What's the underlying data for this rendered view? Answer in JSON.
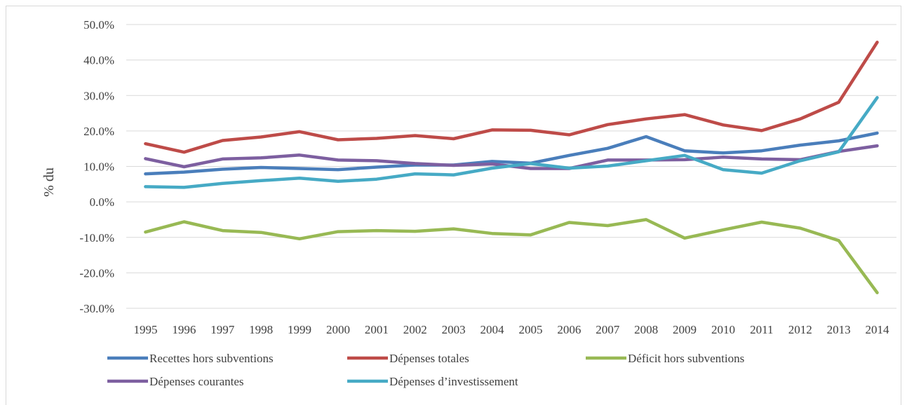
{
  "chart_data": {
    "type": "line",
    "title": "",
    "xlabel": "",
    "ylabel": "% du",
    "ylim": [
      -30,
      50
    ],
    "yticks": [
      50,
      40,
      30,
      20,
      10,
      0,
      -10,
      -20,
      -30
    ],
    "ytick_labels": [
      "50.0%",
      "40.0%",
      "30.0%",
      "20.0%",
      "10.0%",
      "0.0%",
      "-10.0%",
      "-20.0%",
      "-30.0%"
    ],
    "categories": [
      "1995",
      "1996",
      "1997",
      "1998",
      "1999",
      "2000",
      "2001",
      "2002",
      "2003",
      "2004",
      "2005",
      "2006",
      "2007",
      "2008",
      "2009",
      "2010",
      "2011",
      "2012",
      "2013",
      "2014"
    ],
    "grid": true,
    "legend_position": "bottom",
    "series": [
      {
        "name": "Recettes hors subventions",
        "color": "#4a7ebb",
        "values": [
          7.9,
          8.4,
          9.2,
          9.7,
          9.4,
          9.1,
          9.8,
          10.4,
          10.4,
          11.4,
          10.9,
          13.1,
          15.1,
          18.4,
          14.4,
          13.8,
          14.4,
          16.0,
          17.2,
          19.4
        ]
      },
      {
        "name": "Dépenses totales",
        "color": "#be4b48",
        "values": [
          16.4,
          14.0,
          17.3,
          18.3,
          19.8,
          17.5,
          17.9,
          18.7,
          17.8,
          20.3,
          20.2,
          18.9,
          21.8,
          23.4,
          24.6,
          21.7,
          20.1,
          23.4,
          28.1,
          45.0
        ]
      },
      {
        "name": "Déficit hors subventions",
        "color": "#98b954",
        "values": [
          -8.5,
          -5.6,
          -8.1,
          -8.6,
          -10.4,
          -8.4,
          -8.1,
          -8.3,
          -7.6,
          -8.9,
          -9.3,
          -5.8,
          -6.7,
          -5.0,
          -10.2,
          -7.9,
          -5.7,
          -7.4,
          -10.9,
          -25.6
        ]
      },
      {
        "name": "Dépenses courantes",
        "color": "#7d5fa0",
        "values": [
          12.2,
          9.9,
          12.1,
          12.4,
          13.2,
          11.8,
          11.6,
          10.8,
          10.3,
          10.7,
          9.4,
          9.4,
          11.8,
          11.8,
          11.9,
          12.6,
          12.1,
          11.9,
          14.2,
          15.8
        ]
      },
      {
        "name": "Dépenses d’investissement",
        "color": "#46aac5",
        "values": [
          4.3,
          4.1,
          5.2,
          6.0,
          6.7,
          5.8,
          6.4,
          7.9,
          7.6,
          9.5,
          10.8,
          9.5,
          10.1,
          11.6,
          13.1,
          9.1,
          8.1,
          11.6,
          14.1,
          29.4
        ]
      }
    ]
  }
}
